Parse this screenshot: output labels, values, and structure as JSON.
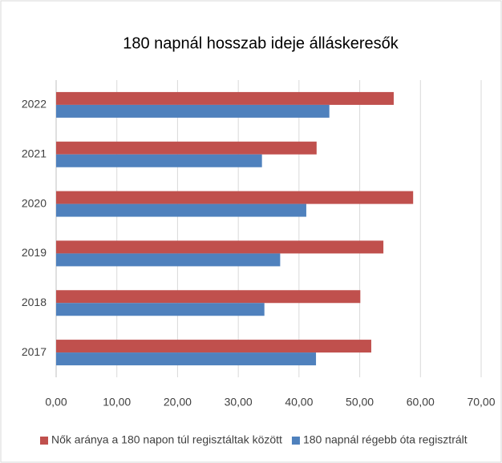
{
  "chart_data": {
    "type": "hbar",
    "title": "180 napnál hosszab ideje álláskeresők",
    "categories": [
      "2017",
      "2018",
      "2019",
      "2020",
      "2021",
      "2022"
    ],
    "series": [
      {
        "name": "Nők aránya a 180 napon túl regisztáltak között",
        "color": "#c0504d",
        "values": [
          51.9,
          50.1,
          53.9,
          58.8,
          42.9,
          55.6
        ]
      },
      {
        "name": "180 napnál régebb óta regisztrált",
        "color": "#4f81bd",
        "values": [
          42.8,
          34.3,
          36.9,
          41.2,
          33.9,
          45.0
        ]
      }
    ],
    "xlim": [
      0,
      70
    ],
    "xticks": [
      {
        "value": 0,
        "label": "0,00"
      },
      {
        "value": 10,
        "label": "10,00"
      },
      {
        "value": 20,
        "label": "20,00"
      },
      {
        "value": 30,
        "label": "30,00"
      },
      {
        "value": 40,
        "label": "40,00"
      },
      {
        "value": 50,
        "label": "50,00"
      },
      {
        "value": 60,
        "label": "60,00"
      },
      {
        "value": 70,
        "label": "70,00"
      }
    ],
    "grid": true,
    "legend": "bottom"
  }
}
